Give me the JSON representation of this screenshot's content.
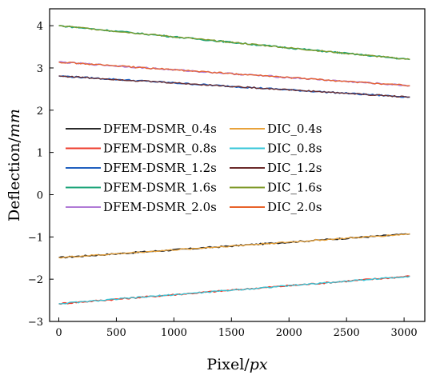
{
  "chart_data": {
    "type": "line",
    "title": "",
    "xlabel": {
      "prefix": "Pixel/",
      "unit": "px"
    },
    "ylabel": {
      "prefix": "Deflection/",
      "unit": "mm"
    },
    "xlim": [
      -80,
      3180
    ],
    "ylim": [
      -3,
      4.4
    ],
    "x_ticks": [
      0,
      500,
      1000,
      1500,
      2000,
      2500,
      3000
    ],
    "y_ticks": [
      -3,
      -2,
      -1,
      0,
      1,
      2,
      3,
      4
    ],
    "y_tick_labels": [
      "−3",
      "−2",
      "−1",
      "0",
      "1",
      "2",
      "3",
      "4"
    ],
    "grid": false,
    "legend_position": "center",
    "legend_columns": 2,
    "series": [
      {
        "name": "DFEM-DSMR_0.4s",
        "color": "#2b2b2b",
        "x": [
          0,
          3050
        ],
        "values": [
          -1.49,
          -0.93
        ]
      },
      {
        "name": "DFEM-DSMR_0.8s",
        "color": "#ee3b2b",
        "x": [
          0,
          3050
        ],
        "values": [
          -2.58,
          -1.93
        ]
      },
      {
        "name": "DFEM-DSMR_1.2s",
        "color": "#1f5fbf",
        "x": [
          0,
          3050
        ],
        "values": [
          2.81,
          2.31
        ]
      },
      {
        "name": "DFEM-DSMR_1.6s",
        "color": "#1ea57a",
        "x": [
          0,
          3050
        ],
        "values": [
          4.0,
          3.2
        ]
      },
      {
        "name": "DFEM-DSMR_2.0s",
        "color": "#b07ad6",
        "x": [
          0,
          3050
        ],
        "values": [
          3.14,
          2.58
        ]
      },
      {
        "name": "DIC_0.4s",
        "color": "#e8a23a",
        "x": [
          0,
          3050
        ],
        "values": [
          -1.49,
          -0.93
        ]
      },
      {
        "name": "DIC_0.8s",
        "color": "#33c6d8",
        "x": [
          0,
          3050
        ],
        "values": [
          -2.58,
          -1.93
        ]
      },
      {
        "name": "DIC_1.2s",
        "color": "#6b2a2a",
        "x": [
          0,
          3050
        ],
        "values": [
          2.81,
          2.31
        ]
      },
      {
        "name": "DIC_1.6s",
        "color": "#7f9a2a",
        "x": [
          0,
          3050
        ],
        "values": [
          4.0,
          3.2
        ]
      },
      {
        "name": "DIC_2.0s",
        "color": "#e8622a",
        "x": [
          0,
          3050
        ],
        "values": [
          3.14,
          2.58
        ]
      }
    ]
  }
}
